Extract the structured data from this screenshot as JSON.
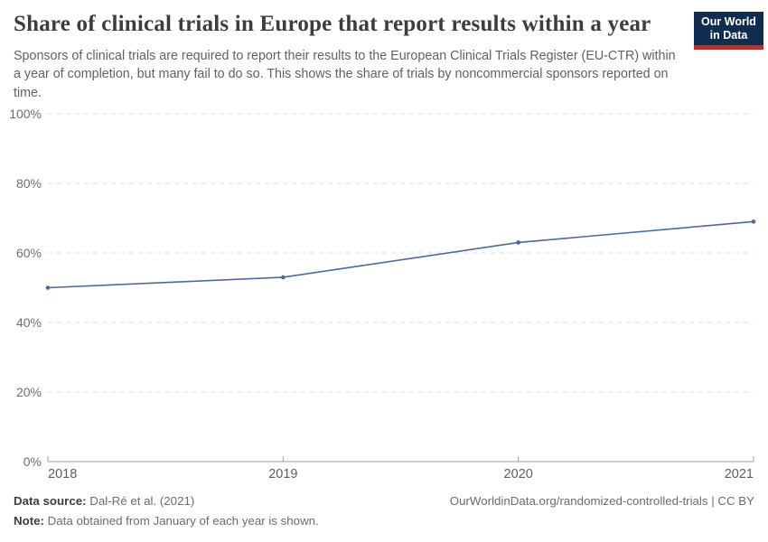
{
  "header": {
    "title": "Share of clinical trials in Europe that report results within a year",
    "subtitle": "Sponsors of clinical trials are required to report their results to the European Clinical Trials Register (EU-CTR) within a year of completion, but many fail to do so. This shows the share of trials by noncommercial sponsors reported on time.",
    "logo": {
      "line1": "Our World",
      "line2": "in Data"
    }
  },
  "chart_data": {
    "type": "line",
    "title": "Share of clinical trials in Europe that report results within a year",
    "x": [
      "2018",
      "2019",
      "2020",
      "2021"
    ],
    "series": [
      {
        "name": "Share of trials by noncommercial sponsors reported on time",
        "values": [
          50,
          53,
          63,
          69
        ]
      }
    ],
    "ylim": [
      0,
      100
    ],
    "yticks": [
      0,
      20,
      40,
      60,
      80,
      100
    ],
    "ytick_suffix": "%",
    "grid": "horizontal-dashed",
    "legend": "none",
    "line_color": "#4C6A9C"
  },
  "colors": {
    "logo_bg": "#102d50",
    "logo_accent": "#b13434",
    "line": "#4C6A9C",
    "grid": "#dcdcdc",
    "axis": "#a1a1a1",
    "tick_label": "#6e6e6e"
  },
  "footer": {
    "datasource_label": "Data source:",
    "datasource_value": " Dal-Ré et al. (2021)",
    "note_label": "Note:",
    "note_value": " Data obtained from January of each year is shown.",
    "link": "OurWorldinData.org/randomized-controlled-trials | CC BY"
  }
}
